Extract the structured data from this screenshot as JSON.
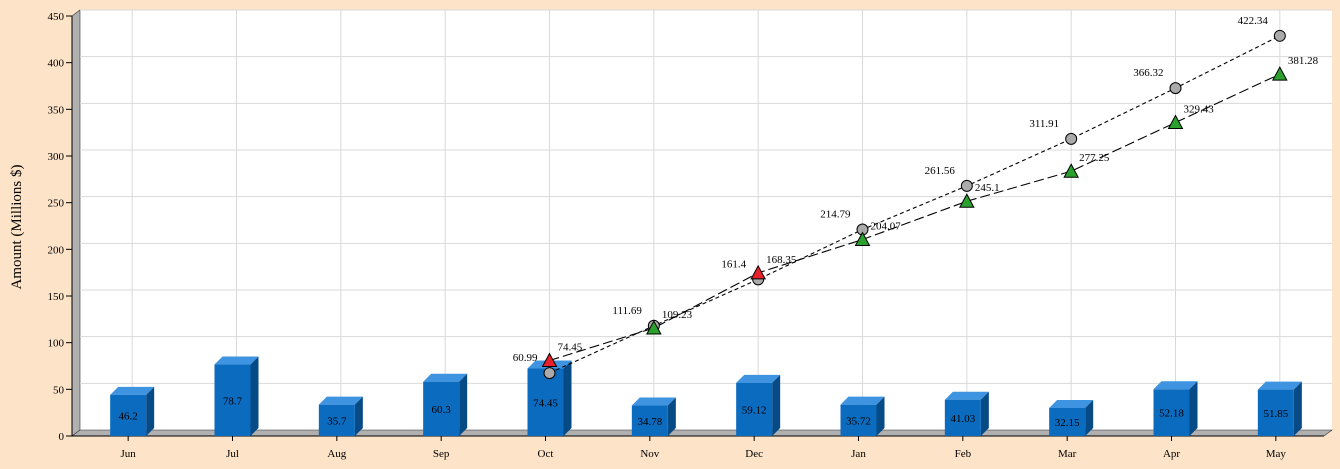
{
  "chart_data": {
    "type": "bar+line",
    "ylabel": "Amount (Millions $)",
    "ylim": [
      0,
      450
    ],
    "yticks": [
      0,
      50,
      100,
      150,
      200,
      250,
      300,
      350,
      400,
      450
    ],
    "grid": true,
    "categories": [
      "Jun",
      "Jul",
      "Aug",
      "Sep",
      "Oct",
      "Nov",
      "Dec",
      "Jan",
      "Feb",
      "Mar",
      "Apr",
      "May"
    ],
    "bars": {
      "color": "#0b6bbf",
      "values": [
        46.2,
        78.7,
        35.7,
        60.3,
        74.45,
        34.78,
        59.12,
        35.72,
        41.03,
        32.15,
        52.18,
        51.85
      ]
    },
    "lines": [
      {
        "marker": "circle",
        "dash": "short",
        "color": "#aaaaaa",
        "start_index": 4,
        "values": [
          60.99,
          111.69,
          161.4,
          214.79,
          261.56,
          311.91,
          366.32,
          422.34
        ]
      },
      {
        "marker": "triangle",
        "dash": "long",
        "color": "#2ca02c",
        "highlight_color": "#e8202a",
        "highlight_indices": [
          4,
          6
        ],
        "start_index": 4,
        "values": [
          74.45,
          109.23,
          168.35,
          204.07,
          245.1,
          277.25,
          329.43,
          381.28
        ]
      }
    ]
  }
}
